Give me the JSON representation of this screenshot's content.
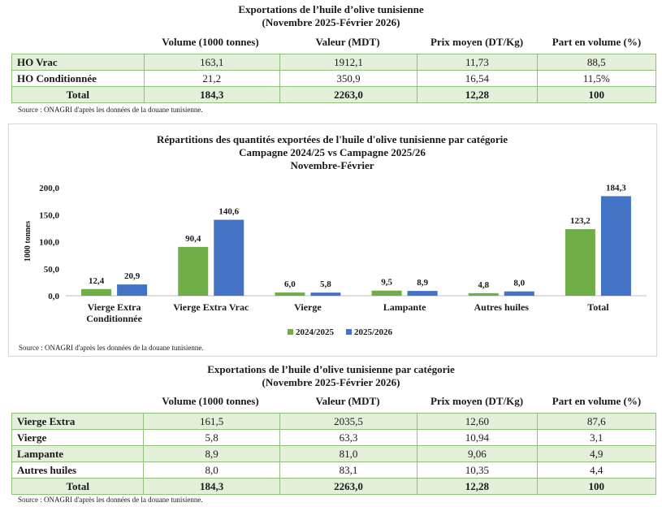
{
  "table1": {
    "title1": "Exportations de l’huile d’olive tunisienne",
    "title2": "(Novembre 2025-Février 2026)",
    "headers": [
      "Volume (1000 tonnes)",
      "Valeur (MDT)",
      "Prix moyen (DT/Kg)",
      "Part en volume (%)"
    ],
    "rows": [
      {
        "label": "HO Vrac",
        "cells": [
          "163,1",
          "1912,1",
          "11,73",
          "88,5"
        ]
      },
      {
        "label": "HO Conditionnée",
        "cells": [
          "21,2",
          "350,9",
          "16,54",
          "11,5%"
        ]
      }
    ],
    "total": {
      "label": "Total",
      "cells": [
        "184,3",
        "2263,0",
        "12,28",
        "100"
      ]
    },
    "source": "Source : ONAGRI  d'après les données de la douane tunisienne."
  },
  "chart_data": {
    "type": "bar",
    "title": "Répartitions des quantités exportées de l'huile d'olive tunisienne par catégorie",
    "subtitle1": "Campagne 2024/25 vs Campagne 2025/26",
    "subtitle2": "Novembre-Février",
    "ylabel": "1000 tonnes",
    "ylim": [
      0,
      200
    ],
    "yticks": [
      "0,0",
      "50,0",
      "100,0",
      "150,0",
      "200,0"
    ],
    "categories": [
      "Vierge Extra Conditionnée",
      "Vierge Extra Vrac",
      "Vierge",
      "Lampante",
      "Autres huiles",
      "Total"
    ],
    "category_lines": [
      [
        "Vierge Extra",
        "Conditionnée"
      ],
      [
        "Vierge Extra Vrac"
      ],
      [
        "Vierge"
      ],
      [
        "Lampante"
      ],
      [
        "Autres huiles"
      ],
      [
        "Total"
      ]
    ],
    "series": [
      {
        "name": "2024/2025",
        "color": "#70ad47",
        "values": [
          12.4,
          90.4,
          6.0,
          9.5,
          4.8,
          123.2
        ],
        "labels": [
          "12,4",
          "90,4",
          "6,0",
          "9,5",
          "4,8",
          "123,2"
        ]
      },
      {
        "name": "2025/2026",
        "color": "#4472c4",
        "values": [
          20.9,
          140.6,
          5.8,
          8.9,
          8.0,
          184.3
        ],
        "labels": [
          "20,9",
          "140,6",
          "5,8",
          "8,9",
          "8,0",
          "184,3"
        ]
      }
    ],
    "legend_position": "bottom",
    "grid": false,
    "source": "Source : ONAGRI  d'après les données de la douane tunisienne."
  },
  "table2": {
    "title1": "Exportations de l’huile d’olive tunisienne par catégorie",
    "title2": "(Novembre 2025-Février 2026)",
    "headers": [
      "Volume (1000 tonnes)",
      "Valeur (MDT)",
      "Prix moyen (DT/Kg)",
      "Part en volume (%)"
    ],
    "rows": [
      {
        "label": "Vierge Extra",
        "cells": [
          "161,5",
          "2035,5",
          "12,60",
          "87,6"
        ]
      },
      {
        "label": "Vierge",
        "cells": [
          "5,8",
          "63,3",
          "10,94",
          "3,1"
        ]
      },
      {
        "label": "Lampante",
        "cells": [
          "8,9",
          "81,0",
          "9,06",
          "4,9"
        ]
      },
      {
        "label": "Autres huiles",
        "cells": [
          "8,0",
          "83,1",
          "10,35",
          "4,4"
        ]
      }
    ],
    "total": {
      "label": "Total",
      "cells": [
        "184,3",
        "2263,0",
        "12,28",
        "100"
      ]
    },
    "source": "Source : ONAGRI  d'après les données de la douane tunisienne."
  }
}
